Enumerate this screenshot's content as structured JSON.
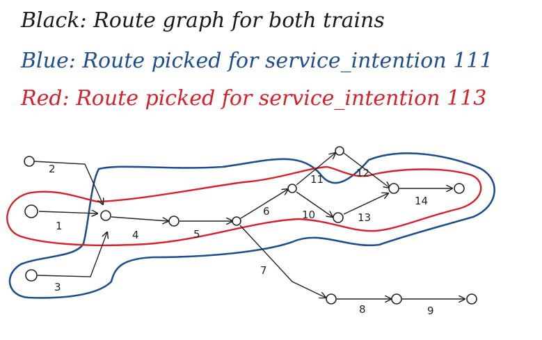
{
  "legend": {
    "black": "Black: Route graph for both trains",
    "blue": "Blue: Route picked for service_intention 111",
    "red": "Red: Route picked for service_intention 113"
  },
  "colors": {
    "black": "#1a1a1a",
    "blue": "#1f4e8c",
    "red": "#d6202a"
  },
  "edges": [
    "2",
    "1",
    "3",
    "4",
    "5",
    "6",
    "11",
    "12",
    "10",
    "13",
    "14",
    "7",
    "8",
    "9"
  ]
}
